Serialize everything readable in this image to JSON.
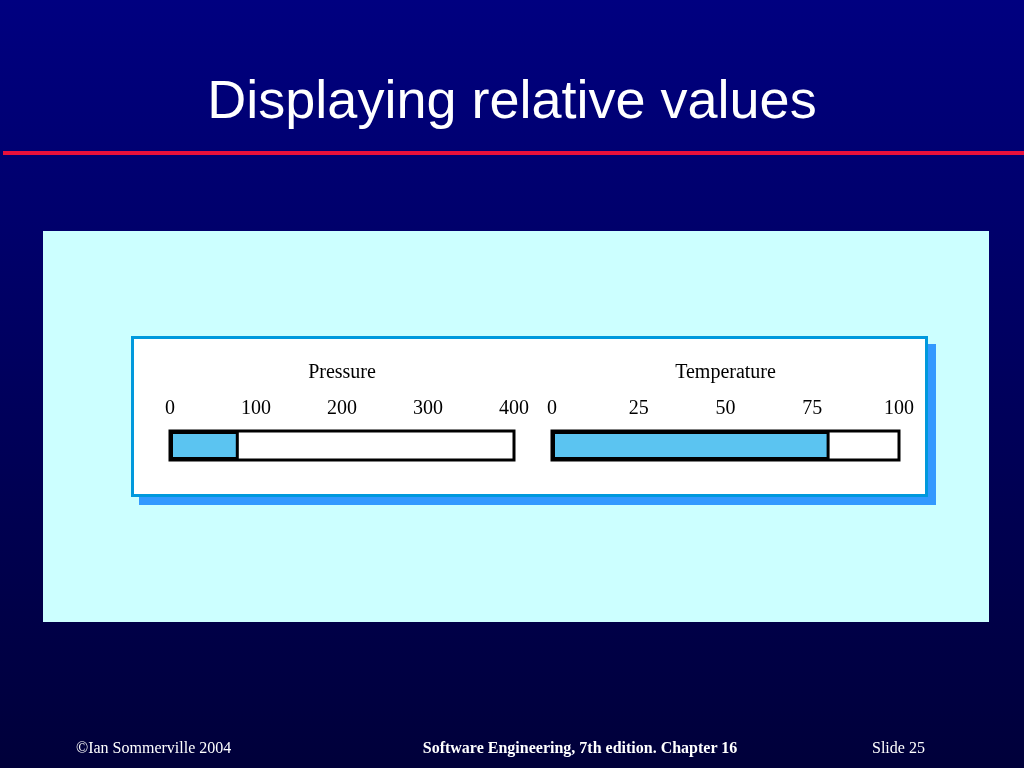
{
  "chart_data": [
    {
      "type": "bar",
      "orientation": "horizontal",
      "title": "Displaying relative values",
      "xlabel": "Pressure",
      "categories": [
        null
      ],
      "values": [
        80
      ],
      "color": "#5bc4f1",
      "xlim": [
        0,
        400
      ],
      "xticks": [
        0,
        100,
        200,
        300,
        400
      ],
      "annotations": [
        "©Ian Sommerville 2004",
        "Software Engineering, 7th edition. Chapter 16",
        "Slide 25"
      ]
    },
    {
      "type": "bar",
      "orientation": "horizontal",
      "xlabel": "Temperature",
      "categories": [
        null
      ],
      "values": [
        80
      ],
      "color": "#5bc4f1",
      "xlim": [
        0,
        100
      ],
      "xticks": [
        0,
        25,
        50,
        75,
        100
      ]
    }
  ]
}
